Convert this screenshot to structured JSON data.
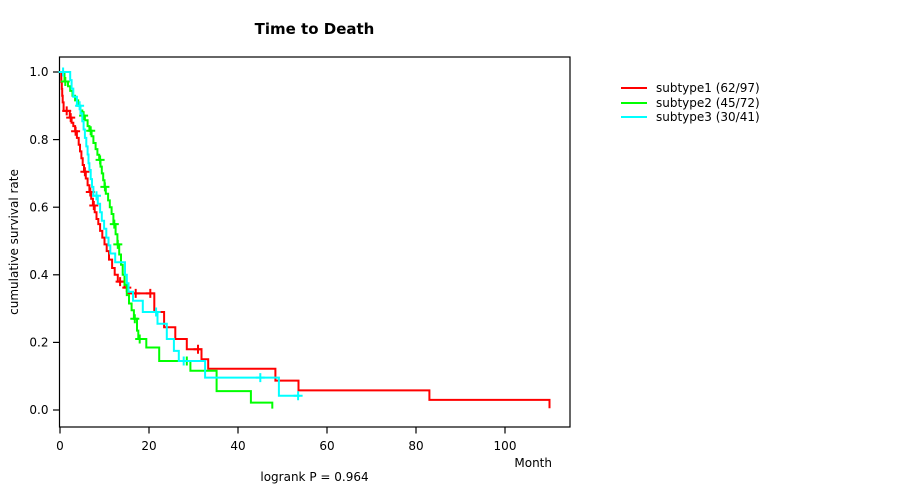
{
  "title": "Time to Death",
  "axes": {
    "x_label": "Month",
    "y_label": "cumulative survival rate",
    "footnote": "logrank P = 0.964"
  },
  "legend": {
    "items": [
      {
        "label": "subtype1 (62/97)",
        "color": "#FF0000"
      },
      {
        "label": "subtype2 (45/72)",
        "color": "#00FF00"
      },
      {
        "label": "subtype3 (30/41)",
        "color": "#00FFFF"
      }
    ]
  },
  "chart_data": {
    "type": "line",
    "subtype": "kaplan-meier-step",
    "title": "Time to Death",
    "xlabel": "Month",
    "ylabel": "cumulative survival rate",
    "annotation": "logrank P = 0.964",
    "xlim": [
      0,
      114
    ],
    "ylim": [
      0,
      1
    ],
    "x_ticks": [
      0,
      20,
      40,
      60,
      80,
      100
    ],
    "y_ticks": [
      {
        "v": 0.0,
        "label": "0.0"
      },
      {
        "v": 0.2,
        "label": "0.2"
      },
      {
        "v": 0.4,
        "label": "0.4"
      },
      {
        "v": 0.6,
        "label": "0.6"
      },
      {
        "v": 0.8,
        "label": "0.8"
      },
      {
        "v": 1.0,
        "label": "1.0"
      }
    ],
    "grid": false,
    "legend_position": "right-outside",
    "series": [
      {
        "name": "subtype1 (62/97)",
        "color": "#FF0000",
        "end_month": 110,
        "steps": [
          [
            0,
            1.0
          ],
          [
            0.3,
            0.97
          ],
          [
            0.4,
            0.95
          ],
          [
            0.5,
            0.93
          ],
          [
            0.6,
            0.91
          ],
          [
            0.8,
            0.885
          ],
          [
            2.2,
            0.865
          ],
          [
            2.6,
            0.85
          ],
          [
            3.0,
            0.84
          ],
          [
            3.4,
            0.825
          ],
          [
            3.8,
            0.805
          ],
          [
            4.2,
            0.785
          ],
          [
            4.5,
            0.765
          ],
          [
            4.8,
            0.745
          ],
          [
            5.1,
            0.725
          ],
          [
            5.4,
            0.705
          ],
          [
            5.8,
            0.685
          ],
          [
            6.2,
            0.665
          ],
          [
            6.6,
            0.645
          ],
          [
            7.0,
            0.625
          ],
          [
            7.4,
            0.605
          ],
          [
            7.8,
            0.585
          ],
          [
            8.2,
            0.565
          ],
          [
            8.6,
            0.55
          ],
          [
            9.0,
            0.53
          ],
          [
            9.5,
            0.51
          ],
          [
            10.0,
            0.49
          ],
          [
            10.5,
            0.47
          ],
          [
            11.0,
            0.445
          ],
          [
            11.7,
            0.42
          ],
          [
            12.3,
            0.4
          ],
          [
            13.0,
            0.38
          ],
          [
            14.5,
            0.362
          ],
          [
            15.2,
            0.345
          ],
          [
            21.2,
            0.29
          ],
          [
            23.4,
            0.245
          ],
          [
            25.9,
            0.21
          ],
          [
            28.5,
            0.18
          ],
          [
            31.8,
            0.15
          ],
          [
            33.3,
            0.122
          ],
          [
            48.4,
            0.087
          ],
          [
            53.6,
            0.058
          ],
          [
            83.0,
            0.03
          ],
          [
            110.0,
            0.005
          ]
        ],
        "censors": [
          [
            1.5,
            0.885
          ],
          [
            2.4,
            0.865
          ],
          [
            3.5,
            0.825
          ],
          [
            5.6,
            0.705
          ],
          [
            6.8,
            0.645
          ],
          [
            7.6,
            0.605
          ],
          [
            13.5,
            0.38
          ],
          [
            15.0,
            0.362
          ],
          [
            17.0,
            0.345
          ],
          [
            20.3,
            0.345
          ],
          [
            31.0,
            0.18
          ]
        ]
      },
      {
        "name": "subtype2 (45/72)",
        "color": "#00FF00",
        "end_month": 47.7,
        "steps": [
          [
            0,
            1.0
          ],
          [
            1.0,
            0.972
          ],
          [
            1.8,
            0.958
          ],
          [
            2.3,
            0.944
          ],
          [
            2.8,
            0.93
          ],
          [
            3.4,
            0.916
          ],
          [
            4.1,
            0.9
          ],
          [
            4.6,
            0.886
          ],
          [
            5.0,
            0.871
          ],
          [
            5.6,
            0.857
          ],
          [
            6.2,
            0.84
          ],
          [
            6.6,
            0.826
          ],
          [
            7.1,
            0.81
          ],
          [
            7.5,
            0.79
          ],
          [
            8.0,
            0.772
          ],
          [
            8.4,
            0.755
          ],
          [
            8.8,
            0.74
          ],
          [
            9.1,
            0.72
          ],
          [
            9.4,
            0.7
          ],
          [
            9.7,
            0.68
          ],
          [
            10.0,
            0.66
          ],
          [
            10.3,
            0.64
          ],
          [
            10.8,
            0.62
          ],
          [
            11.2,
            0.6
          ],
          [
            11.6,
            0.58
          ],
          [
            12.0,
            0.55
          ],
          [
            12.5,
            0.52
          ],
          [
            12.9,
            0.49
          ],
          [
            13.3,
            0.46
          ],
          [
            13.7,
            0.43
          ],
          [
            14.1,
            0.4
          ],
          [
            14.5,
            0.37
          ],
          [
            15.0,
            0.34
          ],
          [
            15.5,
            0.315
          ],
          [
            16.1,
            0.295
          ],
          [
            16.6,
            0.27
          ],
          [
            17.3,
            0.235
          ],
          [
            17.6,
            0.21
          ],
          [
            19.4,
            0.185
          ],
          [
            22.3,
            0.145
          ],
          [
            29.3,
            0.116
          ],
          [
            35.2,
            0.056
          ],
          [
            42.9,
            0.022
          ],
          [
            47.7,
            0.004
          ]
        ],
        "censors": [
          [
            1.2,
            0.972
          ],
          [
            5.3,
            0.871
          ],
          [
            6.9,
            0.826
          ],
          [
            9.0,
            0.74
          ],
          [
            10.1,
            0.66
          ],
          [
            12.2,
            0.55
          ],
          [
            13.0,
            0.49
          ],
          [
            16.8,
            0.27
          ],
          [
            17.9,
            0.21
          ],
          [
            28.5,
            0.145
          ]
        ]
      },
      {
        "name": "subtype3 (30/41)",
        "color": "#00FFFF",
        "end_month": 53.9,
        "steps": [
          [
            0,
            1.0
          ],
          [
            2.3,
            0.976
          ],
          [
            2.6,
            0.951
          ],
          [
            3.0,
            0.927
          ],
          [
            3.8,
            0.9
          ],
          [
            4.6,
            0.878
          ],
          [
            5.0,
            0.854
          ],
          [
            5.3,
            0.83
          ],
          [
            5.6,
            0.805
          ],
          [
            5.9,
            0.78
          ],
          [
            6.2,
            0.756
          ],
          [
            6.4,
            0.73
          ],
          [
            6.6,
            0.71
          ],
          [
            6.9,
            0.683
          ],
          [
            7.2,
            0.66
          ],
          [
            7.5,
            0.634
          ],
          [
            8.5,
            0.61
          ],
          [
            9.0,
            0.585
          ],
          [
            9.4,
            0.56
          ],
          [
            9.9,
            0.536
          ],
          [
            10.4,
            0.51
          ],
          [
            10.9,
            0.487
          ],
          [
            11.3,
            0.463
          ],
          [
            12.4,
            0.437
          ],
          [
            14.6,
            0.4
          ],
          [
            15.0,
            0.375
          ],
          [
            15.4,
            0.35
          ],
          [
            16.4,
            0.323
          ],
          [
            18.6,
            0.29
          ],
          [
            21.9,
            0.255
          ],
          [
            24.0,
            0.21
          ],
          [
            25.6,
            0.175
          ],
          [
            26.7,
            0.145
          ],
          [
            32.6,
            0.096
          ],
          [
            49.2,
            0.042
          ]
        ],
        "censors": [
          [
            0.7,
            1.0
          ],
          [
            4.4,
            0.9
          ],
          [
            8.2,
            0.634
          ],
          [
            21.6,
            0.29
          ],
          [
            27.8,
            0.145
          ],
          [
            45.0,
            0.096
          ],
          [
            53.5,
            0.042
          ]
        ]
      }
    ]
  }
}
